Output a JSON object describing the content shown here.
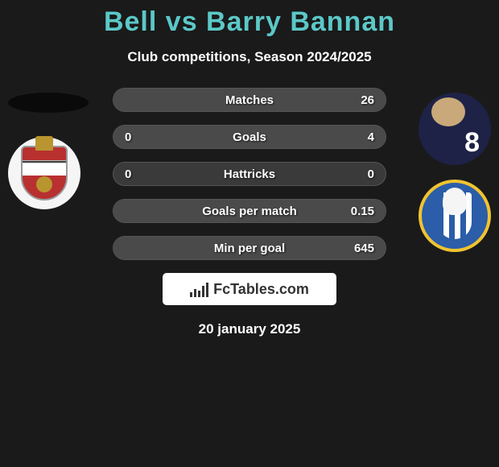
{
  "title_color": "#5cc8c8",
  "player_left": "Bell",
  "player_right": "Barry Bannan",
  "subtitle": "Club competitions, Season 2024/2025",
  "date_text": "20 january 2025",
  "brand_text": "FcTables.com",
  "right_player_number": "8",
  "fill_color": "#4a4a4a",
  "stats": [
    {
      "label": "Matches",
      "left_value": "",
      "right_value": "26",
      "left_pct": 0,
      "right_pct": 100
    },
    {
      "label": "Goals",
      "left_value": "0",
      "right_value": "4",
      "left_pct": 0,
      "right_pct": 100
    },
    {
      "label": "Hattricks",
      "left_value": "0",
      "right_value": "0",
      "left_pct": 0,
      "right_pct": 0
    },
    {
      "label": "Goals per match",
      "left_value": "",
      "right_value": "0.15",
      "left_pct": 0,
      "right_pct": 100
    },
    {
      "label": "Min per goal",
      "left_value": "",
      "right_value": "645",
      "left_pct": 0,
      "right_pct": 100
    }
  ]
}
